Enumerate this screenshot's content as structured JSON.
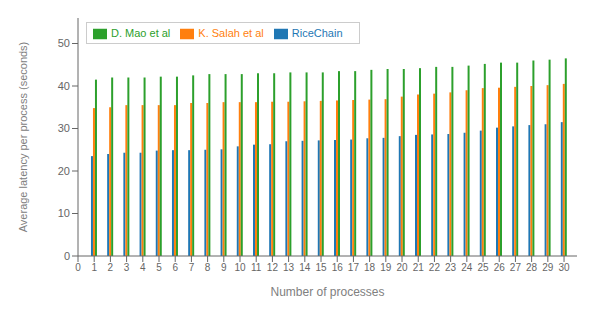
{
  "chart_data": {
    "type": "bar",
    "xlabel": "Number of processes",
    "ylabel": "Average latency per process (seconds)",
    "x": [
      1,
      2,
      3,
      4,
      5,
      6,
      7,
      8,
      9,
      10,
      11,
      12,
      13,
      14,
      15,
      16,
      17,
      18,
      19,
      20,
      21,
      22,
      23,
      24,
      25,
      26,
      27,
      28,
      29,
      30
    ],
    "series": [
      {
        "name": "RiceChain",
        "color": "#1f77b4",
        "values": [
          23.5,
          24.0,
          24.3,
          24.3,
          24.8,
          24.9,
          24.9,
          25.0,
          25.1,
          25.8,
          26.2,
          26.3,
          27.0,
          27.1,
          27.2,
          27.3,
          27.4,
          27.7,
          27.8,
          28.2,
          28.5,
          28.6,
          28.7,
          29.0,
          29.5,
          30.2,
          30.5,
          30.8,
          31.0,
          31.5
        ]
      },
      {
        "name": "K. Salah et al",
        "color": "#ff7f0e",
        "values": [
          34.8,
          35.0,
          35.5,
          35.5,
          35.5,
          35.5,
          36.0,
          36.0,
          36.2,
          36.2,
          36.2,
          36.3,
          36.3,
          36.4,
          36.5,
          36.6,
          36.7,
          36.8,
          36.9,
          37.5,
          38.0,
          38.2,
          38.5,
          39.0,
          39.5,
          39.6,
          39.8,
          40.0,
          40.2,
          40.5
        ]
      },
      {
        "name": "D. Mao et al",
        "color": "#2ca02c",
        "values": [
          41.5,
          42.0,
          42.0,
          42.0,
          42.2,
          42.2,
          42.5,
          42.8,
          42.8,
          42.8,
          43.0,
          43.0,
          43.2,
          43.2,
          43.2,
          43.5,
          43.5,
          43.8,
          44.0,
          44.0,
          44.2,
          44.5,
          44.5,
          44.8,
          45.2,
          45.5,
          45.5,
          46.0,
          46.2,
          46.5
        ]
      }
    ],
    "xlim": [
      0,
      30.8
    ],
    "xticks": [
      0,
      1,
      2,
      3,
      4,
      5,
      6,
      7,
      8,
      9,
      10,
      11,
      12,
      13,
      14,
      15,
      16,
      17,
      18,
      19,
      20,
      21,
      22,
      23,
      24,
      25,
      26,
      27,
      28,
      29,
      30
    ],
    "ylim": [
      0,
      56
    ],
    "yticks": [
      0,
      10,
      20,
      30,
      40,
      50
    ],
    "grid": false,
    "legend": "upper left"
  }
}
